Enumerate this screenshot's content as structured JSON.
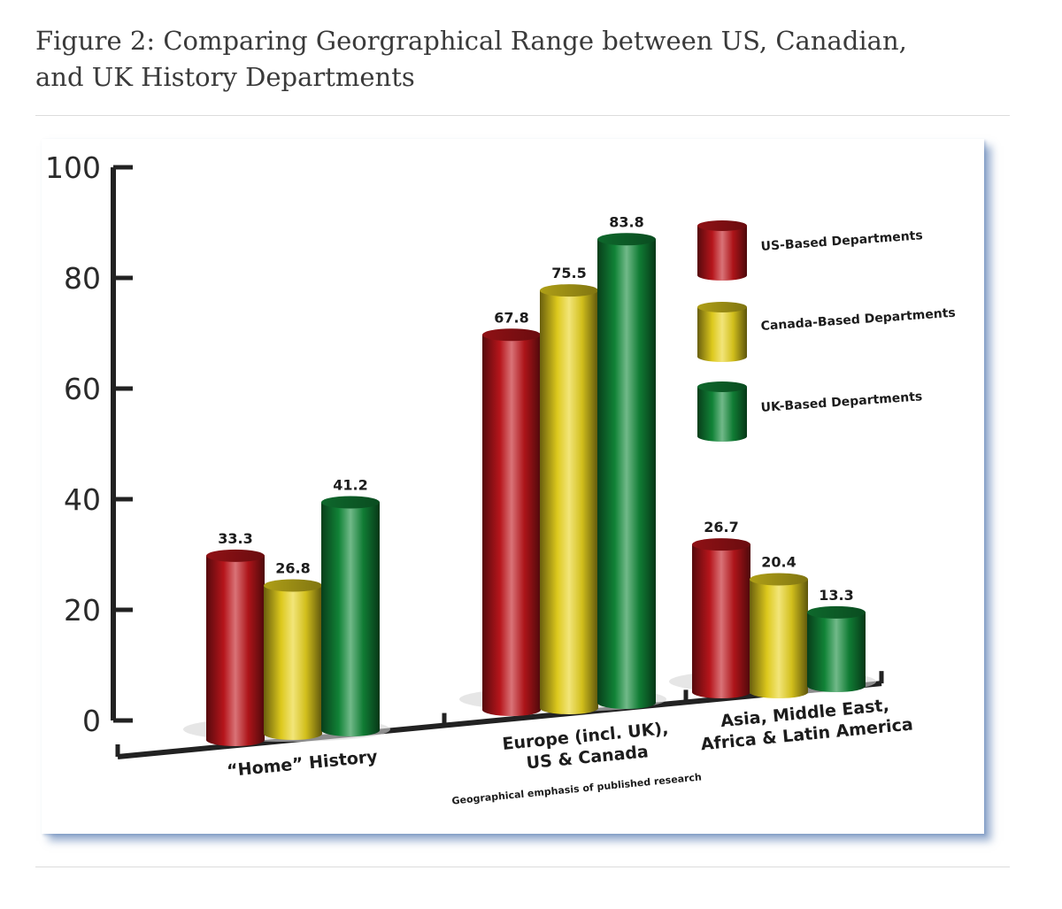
{
  "figure": {
    "title_line1": "Figure 2: Comparing Georgraphical Range between US, Canadian,",
    "title_line2": "and UK History Departments"
  },
  "chart_data": {
    "type": "bar",
    "title": "",
    "xlabel": "Geographical emphasis of published research",
    "ylabel": "",
    "ylim": [
      0,
      100
    ],
    "yticks": [
      0,
      20,
      40,
      60,
      80,
      100
    ],
    "categories": [
      {
        "lines": [
          "“Home” History"
        ]
      },
      {
        "lines": [
          "Europe (incl. UK),",
          "US & Canada"
        ]
      },
      {
        "lines": [
          "Asia, Middle East,",
          "Africa & Latin America"
        ]
      }
    ],
    "series": [
      {
        "name": "US-Based Departments",
        "values": [
          33.3,
          67.8,
          26.7
        ],
        "value_labels": [
          "33.3",
          "67.8",
          "26.7"
        ],
        "color": "#c0161c"
      },
      {
        "name": "Canada-Based Departments",
        "values": [
          26.8,
          75.5,
          20.4
        ],
        "value_labels": [
          "26.8",
          "75.5",
          "20.4"
        ],
        "color": "#e9d41f"
      },
      {
        "name": "UK-Based Departments",
        "values": [
          41.2,
          83.8,
          13.3
        ],
        "value_labels": [
          "41.2",
          "83.8",
          "13.3"
        ],
        "color": "#128a3a"
      }
    ],
    "legend_position": "top-right",
    "grid": false
  }
}
